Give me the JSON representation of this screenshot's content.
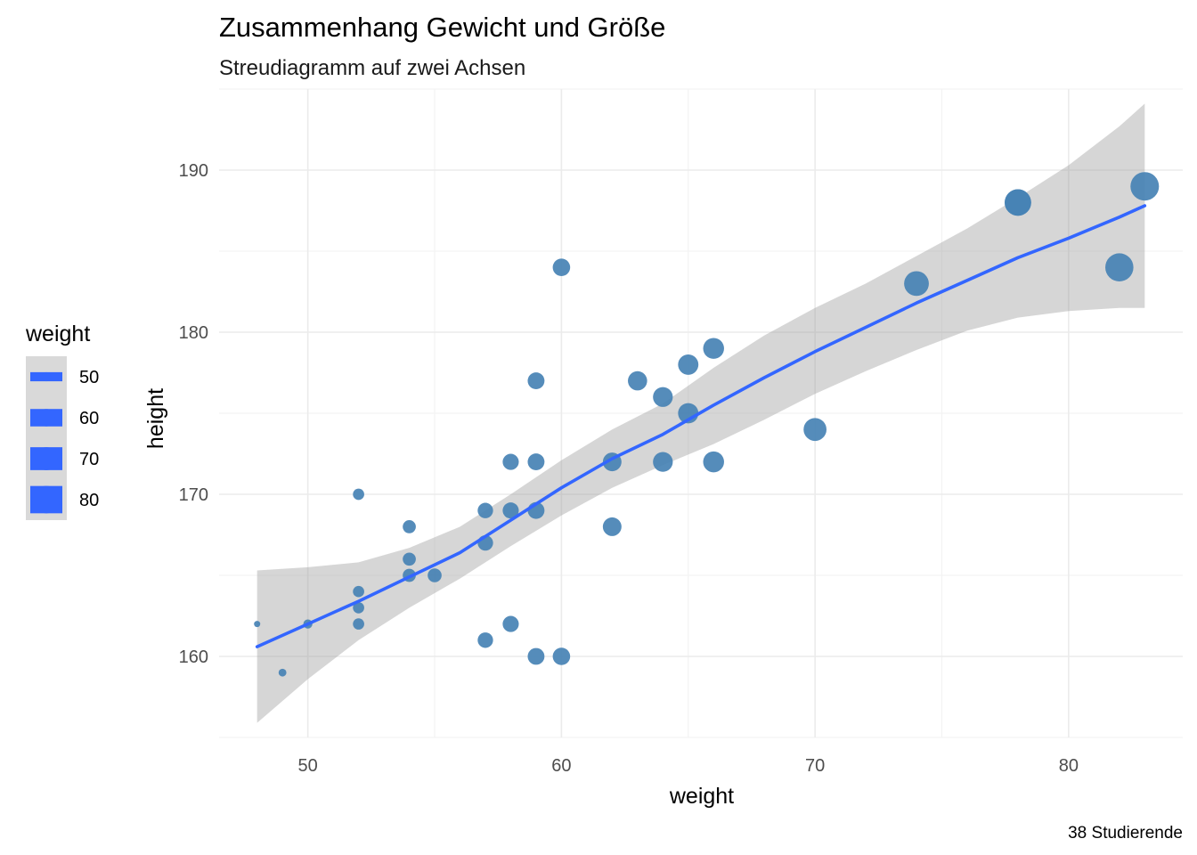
{
  "chart_data": {
    "type": "scatter",
    "title": "Zusammenhang Gewicht und Größe",
    "subtitle": "Streudiagramm auf zwei Achsen",
    "caption": "38 Studierende",
    "xlabel": "weight",
    "ylabel": "height",
    "xlim": [
      46.5,
      84.5
    ],
    "ylim": [
      155,
      195
    ],
    "x_ticks": [
      50,
      60,
      70,
      80
    ],
    "y_ticks": [
      160,
      170,
      180,
      190
    ],
    "grid": true,
    "legend": {
      "title": "weight",
      "placement": "left",
      "entries": [
        {
          "label": "50",
          "value": 50
        },
        {
          "label": "60",
          "value": 60
        },
        {
          "label": "70",
          "value": 70
        },
        {
          "label": "80",
          "value": 80
        }
      ]
    },
    "point_color": "#4682b4",
    "smooth_color": "#3366ff",
    "ribbon_color": "#999999",
    "legend_key_color": "#3366ff",
    "legend_key_bg": "#d9d9d9",
    "points": [
      {
        "x": 48,
        "y": 162
      },
      {
        "x": 49,
        "y": 159
      },
      {
        "x": 50,
        "y": 162
      },
      {
        "x": 52,
        "y": 170
      },
      {
        "x": 52,
        "y": 164
      },
      {
        "x": 52,
        "y": 163
      },
      {
        "x": 52,
        "y": 162
      },
      {
        "x": 54,
        "y": 168
      },
      {
        "x": 54,
        "y": 166
      },
      {
        "x": 54,
        "y": 165
      },
      {
        "x": 55,
        "y": 165
      },
      {
        "x": 57,
        "y": 169
      },
      {
        "x": 57,
        "y": 167
      },
      {
        "x": 57,
        "y": 161
      },
      {
        "x": 58,
        "y": 172
      },
      {
        "x": 58,
        "y": 169
      },
      {
        "x": 58,
        "y": 162
      },
      {
        "x": 59,
        "y": 177
      },
      {
        "x": 59,
        "y": 172
      },
      {
        "x": 59,
        "y": 169
      },
      {
        "x": 59,
        "y": 160
      },
      {
        "x": 60,
        "y": 184
      },
      {
        "x": 60,
        "y": 160
      },
      {
        "x": 62,
        "y": 172
      },
      {
        "x": 62,
        "y": 168
      },
      {
        "x": 63,
        "y": 177
      },
      {
        "x": 64,
        "y": 176
      },
      {
        "x": 64,
        "y": 172
      },
      {
        "x": 65,
        "y": 178
      },
      {
        "x": 65,
        "y": 175
      },
      {
        "x": 66,
        "y": 179
      },
      {
        "x": 66,
        "y": 172
      },
      {
        "x": 70,
        "y": 174
      },
      {
        "x": 74,
        "y": 183
      },
      {
        "x": 78,
        "y": 188
      },
      {
        "x": 78,
        "y": 188
      },
      {
        "x": 82,
        "y": 184
      },
      {
        "x": 83,
        "y": 189
      }
    ],
    "smooth": {
      "method": "loess",
      "fit": [
        {
          "x": 48,
          "y": 160.6,
          "lower": 155.9,
          "upper": 165.3
        },
        {
          "x": 50,
          "y": 162.0,
          "lower": 158.6,
          "upper": 165.5
        },
        {
          "x": 52,
          "y": 163.4,
          "lower": 161.0,
          "upper": 165.8
        },
        {
          "x": 54,
          "y": 164.9,
          "lower": 163.0,
          "upper": 166.7
        },
        {
          "x": 56,
          "y": 166.4,
          "lower": 164.8,
          "upper": 168.0
        },
        {
          "x": 58,
          "y": 168.4,
          "lower": 166.8,
          "upper": 170.0
        },
        {
          "x": 60,
          "y": 170.4,
          "lower": 168.7,
          "upper": 172.1
        },
        {
          "x": 62,
          "y": 172.2,
          "lower": 170.4,
          "upper": 174.0
        },
        {
          "x": 64,
          "y": 173.7,
          "lower": 171.8,
          "upper": 175.6
        },
        {
          "x": 66,
          "y": 175.5,
          "lower": 173.1,
          "upper": 177.8
        },
        {
          "x": 68,
          "y": 177.2,
          "lower": 174.6,
          "upper": 179.8
        },
        {
          "x": 70,
          "y": 178.8,
          "lower": 176.2,
          "upper": 181.5
        },
        {
          "x": 72,
          "y": 180.3,
          "lower": 177.6,
          "upper": 183.0
        },
        {
          "x": 74,
          "y": 181.8,
          "lower": 178.9,
          "upper": 184.7
        },
        {
          "x": 76,
          "y": 183.2,
          "lower": 180.1,
          "upper": 186.4
        },
        {
          "x": 78,
          "y": 184.6,
          "lower": 180.9,
          "upper": 188.3
        },
        {
          "x": 80,
          "y": 185.8,
          "lower": 181.3,
          "upper": 190.3
        },
        {
          "x": 82,
          "y": 187.1,
          "lower": 181.5,
          "upper": 192.7
        },
        {
          "x": 83,
          "y": 187.8,
          "lower": 181.5,
          "upper": 194.1
        }
      ]
    }
  }
}
